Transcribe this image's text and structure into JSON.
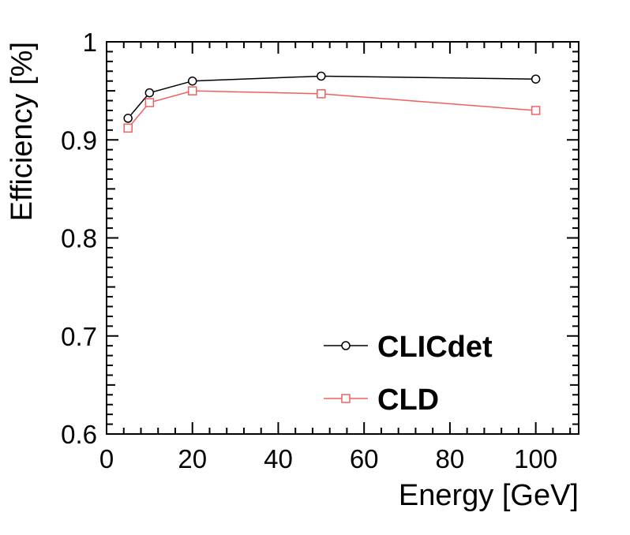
{
  "chart_data": {
    "type": "line",
    "title": "",
    "xlabel": "Energy [GeV]",
    "ylabel": "Efficiency [%]",
    "xlim": [
      0,
      110
    ],
    "ylim": [
      0.6,
      1.0
    ],
    "x_ticks": [
      0,
      20,
      40,
      60,
      80,
      100
    ],
    "x_tick_labels": [
      "0",
      "20",
      "40",
      "60",
      "80",
      "100"
    ],
    "y_ticks": [
      0.6,
      0.7,
      0.8,
      0.9,
      1.0
    ],
    "y_tick_labels": [
      "0.6",
      "0.7",
      "0.8",
      "0.9",
      "1"
    ],
    "grid": false,
    "legend_position": "bottom-right",
    "series": [
      {
        "name": "CLICdet",
        "color": "#000000",
        "marker": "open-circle",
        "x": [
          5,
          10,
          20,
          50,
          100
        ],
        "y": [
          0.922,
          0.948,
          0.96,
          0.965,
          0.962
        ],
        "err": [
          0.004,
          0.004,
          0.004,
          0.004,
          0.004
        ]
      },
      {
        "name": "CLD",
        "color": "#f0605f",
        "marker": "open-square",
        "x": [
          5,
          10,
          20,
          50,
          100
        ],
        "y": [
          0.912,
          0.938,
          0.95,
          0.947,
          0.93
        ],
        "err": [
          0.003,
          0.003,
          0.003,
          0.003,
          0.003
        ]
      }
    ]
  }
}
